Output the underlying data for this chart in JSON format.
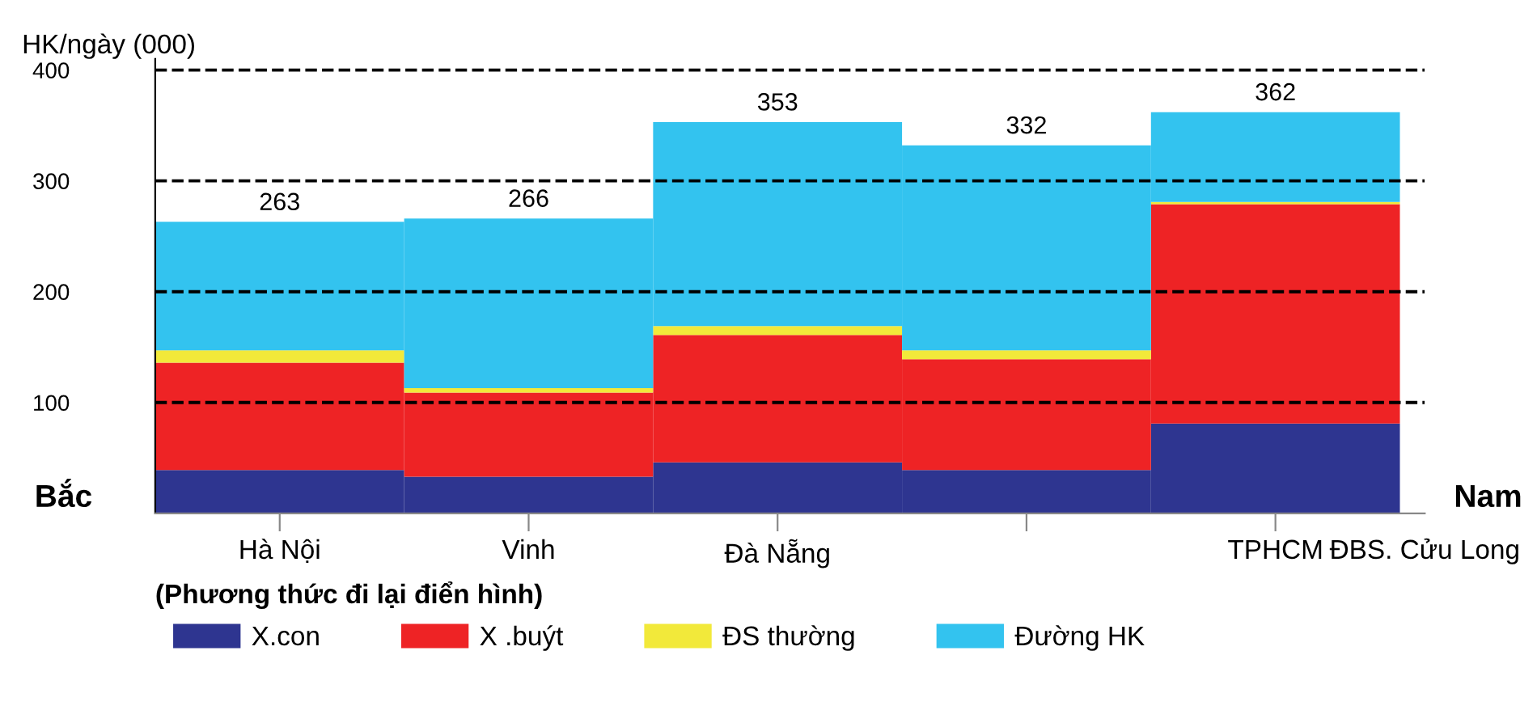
{
  "chart_data": {
    "type": "bar",
    "stacked": true,
    "ylabel": "HK/ngày (000)",
    "legend_title": "(Phương thức đi lại điển hình)",
    "categories": [
      "Hà Nội",
      "Vinh",
      "Đà Nẵng",
      null,
      "TPHCM"
    ],
    "ylim": [
      0,
      410
    ],
    "yticks": [
      100,
      200,
      300,
      400
    ],
    "series": [
      {
        "name": "X.con",
        "color": "#2e3590",
        "values": [
          39,
          33,
          46,
          39,
          81
        ]
      },
      {
        "name": "X .buýt",
        "color": "#ee2325",
        "values": [
          97,
          76,
          115,
          100,
          198
        ]
      },
      {
        "name": "ĐS thường",
        "color": "#f2e93a",
        "values": [
          11,
          4,
          8,
          8,
          2
        ]
      },
      {
        "name": "Đường HK",
        "color": "#33c3ef",
        "values": [
          116,
          153,
          184,
          185,
          81
        ]
      }
    ],
    "totals": [
      "263",
      "266",
      "353",
      "332",
      "362"
    ],
    "annotations": [
      "Bắc",
      "Nam",
      "ĐBS. Cửu Long"
    ],
    "grid": "y",
    "legend": "bottom"
  }
}
